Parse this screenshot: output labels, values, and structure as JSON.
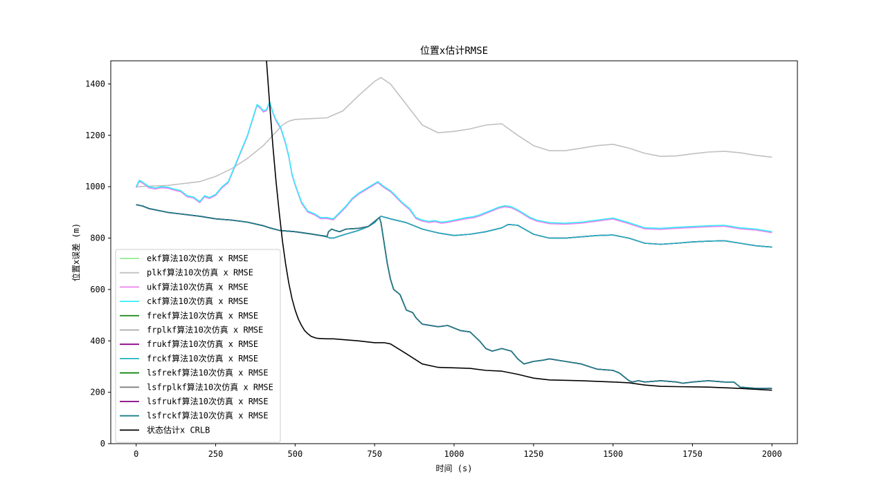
{
  "chart_data": {
    "type": "line",
    "title": "位置x估计RMSE",
    "xlabel": "时间 (s)",
    "ylabel": "位置x误差 (m)",
    "xlim": [
      -80,
      2080
    ],
    "ylim": [
      0,
      1490
    ],
    "xticks": [
      0,
      250,
      500,
      750,
      1000,
      1250,
      1500,
      1750,
      2000
    ],
    "yticks": [
      0,
      200,
      400,
      600,
      800,
      1000,
      1200,
      1400
    ],
    "grid": false,
    "legend_position": "lower-left",
    "series": [
      {
        "name": "ekf算法10次仿真 x RMSE",
        "color": "#90ee90",
        "curve": "ck",
        "offset": 0
      },
      {
        "name": "plkf算法10次仿真 x RMSE",
        "color": "#c0c0c0",
        "curve": "pl",
        "offset": 0
      },
      {
        "name": "ukf算法10次仿真 x RMSE",
        "color": "#ee82ee",
        "curve": "ck",
        "offset": -4
      },
      {
        "name": "ckf算法10次仿真 x RMSE",
        "color": "#33eeff",
        "curve": "ck",
        "offset": 0
      },
      {
        "name": "frekf算法10次仿真 x RMSE",
        "color": "#228b22",
        "curve": "fr",
        "offset": 0
      },
      {
        "name": "frplkf算法10次仿真 x RMSE",
        "color": "#a9a9a9",
        "curve": "fr",
        "offset": 0
      },
      {
        "name": "frukf算法10次仿真 x RMSE",
        "color": "#8b008b",
        "curve": "fr",
        "offset": 0
      },
      {
        "name": "frckf算法10次仿真 x RMSE",
        "color": "#20b2c0",
        "curve": "fr",
        "offset": 0
      },
      {
        "name": "lsfrekf算法10次仿真 x RMSE",
        "color": "#008000",
        "curve": "ls",
        "offset": 0
      },
      {
        "name": "lsfrplkf算法10次仿真 x RMSE",
        "color": "#808080",
        "curve": "ls",
        "offset": 0
      },
      {
        "name": "lsfrukf算法10次仿真 x RMSE",
        "color": "#800080",
        "curve": "ls",
        "offset": 0
      },
      {
        "name": "lsfrckf算法10次仿真 x RMSE",
        "color": "#1a7f87",
        "curve": "ls",
        "offset": 0
      },
      {
        "name": "状态估计x CRLB",
        "color": "#000000",
        "curve": "crlb",
        "offset": 0
      }
    ],
    "curves": {
      "ck": {
        "x": [
          0,
          10,
          20,
          40,
          60,
          80,
          100,
          120,
          140,
          160,
          180,
          200,
          215,
          230,
          250,
          270,
          290,
          310,
          330,
          350,
          360,
          370,
          380,
          390,
          400,
          410,
          420,
          430,
          440,
          455,
          470,
          480,
          490,
          500,
          520,
          540,
          560,
          580,
          600,
          620,
          640,
          660,
          680,
          700,
          720,
          740,
          760,
          780,
          800,
          820,
          840,
          860,
          880,
          900,
          920,
          940,
          960,
          980,
          1000,
          1020,
          1040,
          1060,
          1080,
          1100,
          1120,
          1140,
          1160,
          1180,
          1200,
          1220,
          1240,
          1260,
          1280,
          1300,
          1350,
          1400,
          1450,
          1500,
          1550,
          1600,
          1650,
          1700,
          1750,
          1800,
          1850,
          1900,
          1950,
          2000
        ],
        "y": [
          1000,
          1025,
          1018,
          1000,
          995,
          1000,
          998,
          990,
          985,
          965,
          960,
          942,
          965,
          958,
          970,
          1000,
          1020,
          1080,
          1140,
          1200,
          1240,
          1280,
          1320,
          1310,
          1295,
          1300,
          1330,
          1290,
          1260,
          1230,
          1170,
          1120,
          1050,
          1010,
          940,
          905,
          895,
          880,
          880,
          875,
          900,
          925,
          955,
          975,
          990,
          1005,
          1020,
          1000,
          985,
          960,
          935,
          915,
          880,
          870,
          865,
          868,
          862,
          865,
          870,
          875,
          880,
          883,
          890,
          900,
          910,
          920,
          926,
          922,
          910,
          895,
          880,
          870,
          865,
          860,
          858,
          862,
          870,
          878,
          860,
          840,
          838,
          842,
          845,
          848,
          850,
          840,
          835,
          825
        ]
      },
      "pl": {
        "x": [
          0,
          100,
          200,
          250,
          300,
          350,
          400,
          430,
          460,
          480,
          500,
          550,
          600,
          650,
          700,
          750,
          770,
          800,
          850,
          900,
          950,
          1000,
          1050,
          1100,
          1150,
          1200,
          1250,
          1300,
          1350,
          1400,
          1450,
          1500,
          1550,
          1600,
          1650,
          1700,
          1750,
          1800,
          1850,
          1900,
          1950,
          2000
        ],
        "y": [
          1000,
          1005,
          1020,
          1040,
          1070,
          1110,
          1160,
          1200,
          1240,
          1255,
          1262,
          1265,
          1268,
          1295,
          1355,
          1410,
          1425,
          1400,
          1320,
          1240,
          1210,
          1215,
          1225,
          1240,
          1245,
          1200,
          1160,
          1140,
          1140,
          1150,
          1160,
          1165,
          1150,
          1130,
          1118,
          1120,
          1128,
          1135,
          1138,
          1132,
          1122,
          1115
        ]
      },
      "fr": {
        "x": [
          0,
          20,
          40,
          100,
          200,
          250,
          300,
          350,
          400,
          420,
          450,
          500,
          550,
          580,
          600,
          610,
          620,
          650,
          700,
          730,
          750,
          760,
          770,
          800,
          850,
          900,
          950,
          1000,
          1050,
          1100,
          1150,
          1170,
          1200,
          1250,
          1300,
          1350,
          1400,
          1450,
          1500,
          1550,
          1600,
          1650,
          1700,
          1750,
          1800,
          1850,
          1900,
          1950,
          2000
        ],
        "y": [
          930,
          925,
          915,
          900,
          885,
          875,
          870,
          862,
          848,
          840,
          830,
          825,
          816,
          810,
          805,
          800,
          800,
          812,
          830,
          845,
          860,
          875,
          885,
          875,
          860,
          835,
          820,
          810,
          815,
          825,
          840,
          853,
          850,
          815,
          800,
          800,
          805,
          810,
          812,
          800,
          780,
          776,
          780,
          785,
          788,
          790,
          780,
          770,
          765
        ]
      },
      "ls": {
        "x": [
          0,
          20,
          40,
          100,
          200,
          250,
          300,
          350,
          400,
          420,
          450,
          500,
          550,
          580,
          595,
          600,
          605,
          615,
          625,
          640,
          660,
          700,
          730,
          745,
          755,
          765,
          770,
          780,
          790,
          800,
          810,
          830,
          850,
          870,
          880,
          900,
          950,
          980,
          1000,
          1020,
          1050,
          1080,
          1100,
          1120,
          1150,
          1180,
          1200,
          1220,
          1250,
          1280,
          1300,
          1350,
          1400,
          1450,
          1500,
          1520,
          1550,
          1560,
          1580,
          1600,
          1650,
          1700,
          1720,
          1750,
          1800,
          1850,
          1880,
          1900,
          1950,
          2000
        ],
        "y": [
          930,
          925,
          915,
          900,
          885,
          875,
          870,
          862,
          848,
          840,
          830,
          825,
          816,
          810,
          808,
          805,
          825,
          835,
          830,
          825,
          835,
          838,
          845,
          860,
          870,
          880,
          860,
          780,
          700,
          640,
          600,
          580,
          520,
          510,
          490,
          465,
          455,
          460,
          450,
          440,
          435,
          400,
          370,
          360,
          370,
          360,
          330,
          310,
          320,
          325,
          330,
          320,
          310,
          290,
          285,
          275,
          245,
          240,
          245,
          240,
          245,
          240,
          235,
          240,
          245,
          240,
          240,
          220,
          215,
          215
        ]
      },
      "crlb": {
        "x": [
          410,
          420,
          430,
          440,
          450,
          460,
          470,
          480,
          490,
          500,
          510,
          520,
          530,
          540,
          550,
          560,
          570,
          580,
          600,
          620,
          650,
          700,
          750,
          780,
          800,
          850,
          900,
          950,
          1000,
          1050,
          1100,
          1150,
          1200,
          1250,
          1300,
          1400,
          1500,
          1550,
          1600,
          1650,
          1700,
          1800,
          1900,
          2000
        ],
        "y": [
          1490,
          1320,
          1160,
          1020,
          900,
          790,
          700,
          625,
          565,
          520,
          485,
          460,
          440,
          428,
          418,
          413,
          410,
          409,
          408,
          408,
          405,
          400,
          393,
          393,
          388,
          350,
          310,
          297,
          295,
          293,
          285,
          282,
          270,
          255,
          248,
          245,
          240,
          237,
          228,
          223,
          222,
          220,
          215,
          208
        ]
      }
    }
  }
}
